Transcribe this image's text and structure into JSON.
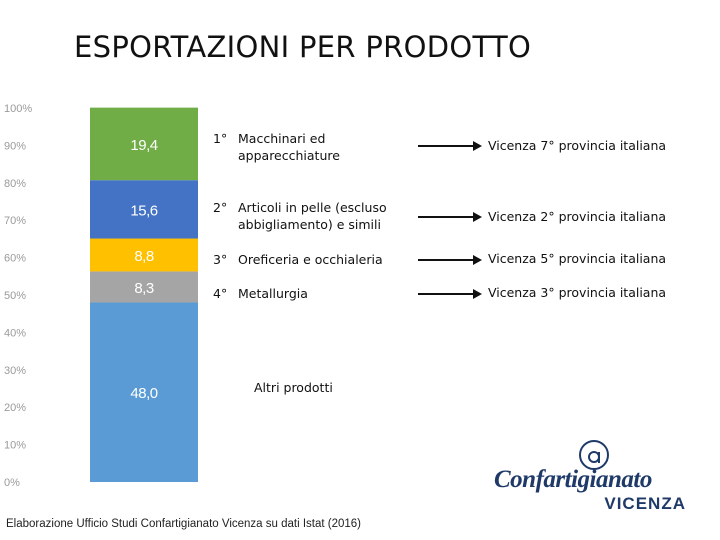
{
  "title": "ESPORTAZIONI PER PRODOTTO",
  "chart_data": {
    "type": "bar",
    "stacked": true,
    "categories": [
      ""
    ],
    "y_ticks": [
      "0%",
      "10%",
      "20%",
      "30%",
      "40%",
      "50%",
      "60%",
      "70%",
      "80%",
      "90%",
      "100%"
    ],
    "ylim": [
      0,
      100
    ],
    "series": [
      {
        "label": "48,0",
        "value": 48.0,
        "color": "#5b9bd5"
      },
      {
        "label": "8,3",
        "value": 8.3,
        "color": "#a5a5a5"
      },
      {
        "label": "8,8",
        "value": 8.8,
        "color": "#ffc000"
      },
      {
        "label": "15,6",
        "value": 15.6,
        "color": "#4472c4"
      },
      {
        "label": "19,4",
        "value": 19.4,
        "color": "#70ad47"
      }
    ]
  },
  "products": [
    {
      "rank": "1°",
      "line1": "Macchinari ed",
      "line2": "apparecchiature",
      "province": "Vicenza 7° provincia italiana"
    },
    {
      "rank": "2°",
      "line1": "Articoli in pelle (escluso",
      "line2": "abbigliamento) e simili",
      "province": "Vicenza 2° provincia italiana"
    },
    {
      "rank": "3°",
      "line1": "Oreficeria e occhialeria",
      "line2": "",
      "province": "Vicenza 5° provincia italiana"
    },
    {
      "rank": "4°",
      "line1": "Metallurgia",
      "line2": "",
      "province": "Vicenza 3° provincia italiana"
    }
  ],
  "other_label": "Altri prodotti",
  "source": "Elaborazione Ufficio Studi Confartigianato Vicenza su dati Istat (2016)",
  "logo": {
    "word": "Confartigianato",
    "city": "VICENZA",
    "color": "#1f3a68"
  }
}
